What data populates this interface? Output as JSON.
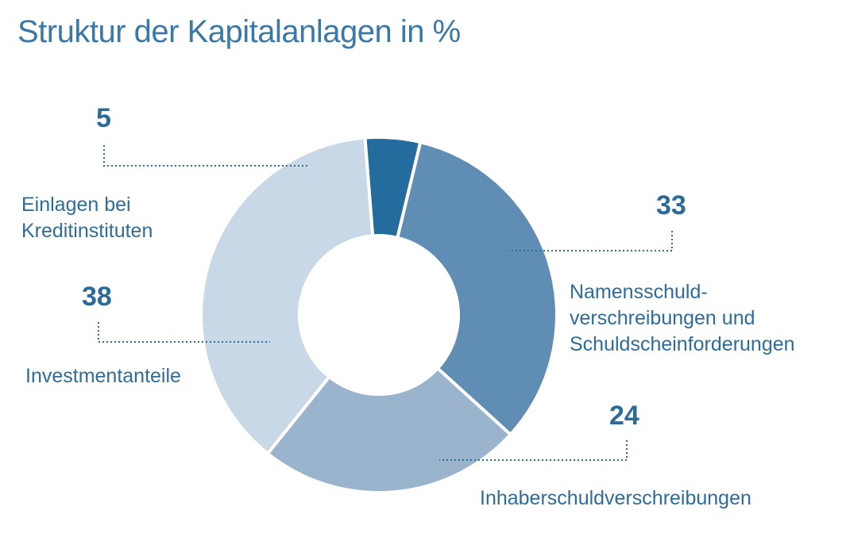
{
  "chart_data": {
    "type": "pie",
    "title": "Struktur der Kapitalanlagen in %",
    "categories": [
      "Einlagen bei Kreditinstituten",
      "Namensschuldverschreibungen und Schuldscheinforderungen",
      "Inhaberschuldverschreibungen",
      "Investmentanteile"
    ],
    "values": [
      5,
      33,
      24,
      38
    ],
    "slices": [
      {
        "name": "Einlagen bei Kreditinstituten",
        "value": 5,
        "value_label": "5",
        "label_lines": [
          "Einlagen bei",
          "Kreditinstituten"
        ],
        "color": "#246c9e"
      },
      {
        "name": "Namensschuldverschreibungen und Schuldscheinforderungen",
        "value": 33,
        "value_label": "33",
        "label_lines": [
          "Namensschuld-",
          "verschreibungen und",
          "Schuldscheinforderungen"
        ],
        "color": "#5f8db4"
      },
      {
        "name": "Inhaberschuldverschreibungen",
        "value": 24,
        "value_label": "24",
        "label_lines": [
          "Inhaberschuldverschreibungen"
        ],
        "color": "#9ab4cd"
      },
      {
        "name": "Investmentanteile",
        "value": 38,
        "value_label": "38",
        "label_lines": [
          "Investmentanteile"
        ],
        "color": "#c8d8e7"
      }
    ],
    "donut": true,
    "legend": "none"
  }
}
